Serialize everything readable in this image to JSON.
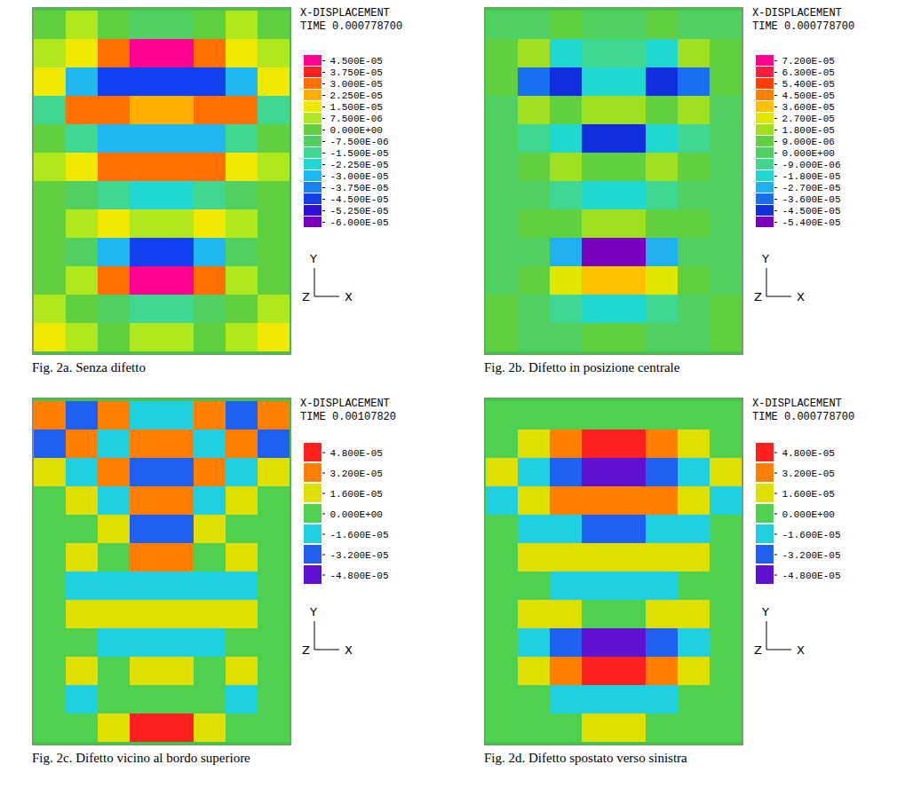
{
  "chart_data": [
    {
      "type": "heatmap",
      "title": "X-DISPLACEMENT",
      "subtitle": "TIME 0.000778700",
      "caption": "Fig. 2a. Senza difetto",
      "axis_labels": {
        "y": "Y",
        "z": "Z",
        "x": "X"
      },
      "tick_labels": false,
      "cells": [
        [
          0,
          7.5e-06,
          0,
          -7.5e-06,
          -7.5e-06,
          0,
          7.5e-06,
          0
        ],
        [
          7.5e-06,
          1.5e-05,
          3e-05,
          4.5e-05,
          4.5e-05,
          3e-05,
          1.5e-05,
          7.5e-06
        ],
        [
          1.5e-05,
          -3e-05,
          -4.5e-05,
          -4.5e-05,
          -4.5e-05,
          -4.5e-05,
          -3e-05,
          1.5e-05
        ],
        [
          -1.5e-05,
          3e-05,
          3e-05,
          2.25e-05,
          2.25e-05,
          3e-05,
          3e-05,
          -1.5e-05
        ],
        [
          0,
          -1.5e-05,
          -3e-05,
          -3e-05,
          -3e-05,
          -3e-05,
          -1.5e-05,
          0
        ],
        [
          7.5e-06,
          1.5e-05,
          3e-05,
          3e-05,
          3e-05,
          3e-05,
          1.5e-05,
          7.5e-06
        ],
        [
          0,
          -7.5e-06,
          -1.5e-05,
          -2.25e-05,
          -2.25e-05,
          -1.5e-05,
          -7.5e-06,
          0
        ],
        [
          0,
          7.5e-06,
          1.5e-05,
          7.5e-06,
          7.5e-06,
          1.5e-05,
          7.5e-06,
          0
        ],
        [
          0,
          -7.5e-06,
          -3e-05,
          -4.5e-05,
          -4.5e-05,
          -3e-05,
          -7.5e-06,
          0
        ],
        [
          0,
          7.5e-06,
          3e-05,
          4.5e-05,
          4.5e-05,
          3e-05,
          7.5e-06,
          0
        ],
        [
          7.5e-06,
          0,
          -7.5e-06,
          -1.5e-05,
          -1.5e-05,
          -7.5e-06,
          0,
          7.5e-06
        ],
        [
          1.5e-05,
          7.5e-06,
          0,
          7.5e-06,
          7.5e-06,
          0,
          7.5e-06,
          1.5e-05
        ]
      ],
      "colorbar": {
        "range": [
          -6e-05,
          4.5e-05
        ],
        "ticks": [
          {
            "value": -6e-05,
            "label": "-6.000E-05"
          },
          {
            "value": -5.25e-05,
            "label": "-5.250E-05"
          },
          {
            "value": -4.5e-05,
            "label": "-4.500E-05"
          },
          {
            "value": -3.75e-05,
            "label": "-3.750E-05"
          },
          {
            "value": -3e-05,
            "label": "-3.000E-05"
          },
          {
            "value": -2.25e-05,
            "label": "-2.250E-05"
          },
          {
            "value": -1.5e-05,
            "label": "-1.500E-05"
          },
          {
            "value": -7.5e-06,
            "label": "-7.500E-06"
          },
          {
            "value": 0,
            "label": "0.000E+00"
          },
          {
            "value": 7.5e-06,
            "label": "7.500E-06"
          },
          {
            "value": 1.5e-05,
            "label": "1.500E-05"
          },
          {
            "value": 2.25e-05,
            "label": "2.250E-05"
          },
          {
            "value": 3e-05,
            "label": "3.000E-05"
          },
          {
            "value": 3.75e-05,
            "label": "3.750E-05"
          },
          {
            "value": 4.5e-05,
            "label": "4.500E-05"
          }
        ]
      },
      "colors": [
        "#7a00c0",
        "#3010d8",
        "#1040f0",
        "#1880f0",
        "#20b8f0",
        "#20d8d0",
        "#40d890",
        "#50d060",
        "#60d040",
        "#b0e820",
        "#f0e800",
        "#ffb000",
        "#ff7000",
        "#ff2020",
        "#ff0090"
      ]
    },
    {
      "type": "heatmap",
      "title": "X-DISPLACEMENT",
      "subtitle": "TIME 0.000778700",
      "caption": "Fig. 2b. Difetto in posizione centrale",
      "axis_labels": {
        "y": "Y",
        "z": "Z",
        "x": "X"
      },
      "tick_labels": false,
      "cells": [
        [
          0,
          0,
          9e-06,
          0,
          0,
          9e-06,
          0,
          0
        ],
        [
          9e-06,
          1.8e-05,
          -1.8e-05,
          -9e-06,
          -9e-06,
          -1.8e-05,
          1.8e-05,
          9e-06
        ],
        [
          9e-06,
          -3.6e-05,
          -4.5e-05,
          -1.8e-05,
          -1.8e-05,
          -4.5e-05,
          -3.6e-05,
          9e-06
        ],
        [
          0,
          1.8e-05,
          9e-06,
          1.8e-05,
          1.8e-05,
          9e-06,
          1.8e-05,
          0
        ],
        [
          0,
          -9e-06,
          -1.8e-05,
          -4.5e-05,
          -4.5e-05,
          -1.8e-05,
          -9e-06,
          0
        ],
        [
          0,
          9e-06,
          1.8e-05,
          9e-06,
          9e-06,
          1.8e-05,
          9e-06,
          0
        ],
        [
          0,
          0,
          -9e-06,
          -1.8e-05,
          -1.8e-05,
          -9e-06,
          0,
          0
        ],
        [
          0,
          9e-06,
          9e-06,
          1.8e-05,
          1.8e-05,
          9e-06,
          9e-06,
          0
        ],
        [
          0,
          0,
          -2.7e-05,
          -5.4e-05,
          -5.4e-05,
          -2.7e-05,
          0,
          0
        ],
        [
          0,
          9e-06,
          2.7e-05,
          3.6e-05,
          3.6e-05,
          2.7e-05,
          9e-06,
          0
        ],
        [
          9e-06,
          0,
          -9e-06,
          -1.8e-05,
          -1.8e-05,
          -9e-06,
          0,
          9e-06
        ],
        [
          9e-06,
          0,
          0,
          9e-06,
          9e-06,
          0,
          0,
          9e-06
        ]
      ],
      "colorbar": {
        "range": [
          -5.4e-05,
          7.2e-05
        ],
        "ticks": [
          {
            "value": -5.4e-05,
            "label": "-5.400E-05"
          },
          {
            "value": -4.5e-05,
            "label": "-4.500E-05"
          },
          {
            "value": -3.6e-05,
            "label": "-3.600E-05"
          },
          {
            "value": -2.7e-05,
            "label": "-2.700E-05"
          },
          {
            "value": -1.8e-05,
            "label": "-1.800E-05"
          },
          {
            "value": -9e-06,
            "label": "-9.000E-06"
          },
          {
            "value": 0,
            "label": "0.000E+00"
          },
          {
            "value": 9e-06,
            "label": "9.000E-06"
          },
          {
            "value": 1.8e-05,
            "label": "1.800E-05"
          },
          {
            "value": 2.7e-05,
            "label": "2.700E-05"
          },
          {
            "value": 3.6e-05,
            "label": "3.600E-05"
          },
          {
            "value": 4.5e-05,
            "label": "4.500E-05"
          },
          {
            "value": 5.4e-05,
            "label": "5.400E-05"
          },
          {
            "value": 6.3e-05,
            "label": "6.300E-05"
          },
          {
            "value": 7.2e-05,
            "label": "7.200E-05"
          }
        ]
      },
      "colors": [
        "#7a00c0",
        "#1030e0",
        "#1870f0",
        "#20b0f0",
        "#20d8d0",
        "#40d890",
        "#50d060",
        "#60d040",
        "#a0e020",
        "#e0e800",
        "#ffc000",
        "#ff8000",
        "#ff4000",
        "#ff1a40",
        "#ff0090"
      ]
    },
    {
      "type": "heatmap",
      "title": "X-DISPLACEMENT",
      "subtitle": "TIME 0.00107820",
      "caption": "Fig. 2c. Difetto vicino al bordo superiore",
      "axis_labels": {
        "y": "Y",
        "z": "Z",
        "x": "X"
      },
      "tick_labels": false,
      "cells": [
        [
          3.2e-05,
          -3.2e-05,
          3.2e-05,
          -1.6e-05,
          -1.6e-05,
          3.2e-05,
          -3.2e-05,
          3.2e-05
        ],
        [
          -3.2e-05,
          3.2e-05,
          -1.6e-05,
          3.2e-05,
          3.2e-05,
          -1.6e-05,
          3.2e-05,
          -3.2e-05
        ],
        [
          1.6e-05,
          -1.6e-05,
          3.2e-05,
          -3.2e-05,
          -3.2e-05,
          3.2e-05,
          -1.6e-05,
          1.6e-05
        ],
        [
          0,
          1.6e-05,
          -1.6e-05,
          3.2e-05,
          3.2e-05,
          -1.6e-05,
          1.6e-05,
          0
        ],
        [
          0,
          0,
          1.6e-05,
          -3.2e-05,
          -3.2e-05,
          1.6e-05,
          0,
          0
        ],
        [
          0,
          1.6e-05,
          0,
          3.2e-05,
          3.2e-05,
          0,
          1.6e-05,
          0
        ],
        [
          0,
          -1.6e-05,
          -1.6e-05,
          -1.6e-05,
          -1.6e-05,
          -1.6e-05,
          -1.6e-05,
          0
        ],
        [
          0,
          1.6e-05,
          1.6e-05,
          1.6e-05,
          1.6e-05,
          1.6e-05,
          1.6e-05,
          0
        ],
        [
          0,
          0,
          -1.6e-05,
          -1.6e-05,
          -1.6e-05,
          -1.6e-05,
          0,
          0
        ],
        [
          0,
          1.6e-05,
          0,
          1.6e-05,
          1.6e-05,
          0,
          1.6e-05,
          0
        ],
        [
          0,
          -1.6e-05,
          0,
          0,
          0,
          0,
          -1.6e-05,
          0
        ],
        [
          0,
          0,
          1.6e-05,
          4.8e-05,
          4.8e-05,
          1.6e-05,
          0,
          0
        ]
      ],
      "colorbar": {
        "range": [
          -4.8e-05,
          4.8e-05
        ],
        "ticks": [
          {
            "value": -4.8e-05,
            "label": "-4.800E-05"
          },
          {
            "value": -3.2e-05,
            "label": "-3.200E-05"
          },
          {
            "value": -1.6e-05,
            "label": "-1.600E-05"
          },
          {
            "value": 0,
            "label": "0.000E+00"
          },
          {
            "value": 1.6e-05,
            "label": "1.600E-05"
          },
          {
            "value": 3.2e-05,
            "label": "3.200E-05"
          },
          {
            "value": 4.8e-05,
            "label": "4.800E-05"
          }
        ]
      },
      "colors": [
        "#6010d0",
        "#2060f0",
        "#20d0e0",
        "#50d050",
        "#e0e000",
        "#ff8000",
        "#ff2020"
      ]
    },
    {
      "type": "heatmap",
      "title": "X-DISPLACEMENT",
      "subtitle": "TIME 0.000778700",
      "caption": "Fig. 2d. Difetto spostato verso sinistra",
      "axis_labels": {
        "y": "Y",
        "z": "Z",
        "x": "X"
      },
      "tick_labels": false,
      "cells": [
        [
          0,
          0,
          0,
          0,
          0,
          0,
          0,
          0
        ],
        [
          0,
          1.6e-05,
          3.2e-05,
          4.8e-05,
          4.8e-05,
          3.2e-05,
          1.6e-05,
          0
        ],
        [
          1.6e-05,
          -1.6e-05,
          -3.2e-05,
          -4.8e-05,
          -4.8e-05,
          -3.2e-05,
          -1.6e-05,
          1.6e-05
        ],
        [
          -1.6e-05,
          1.6e-05,
          3.2e-05,
          3.2e-05,
          3.2e-05,
          3.2e-05,
          1.6e-05,
          -1.6e-05
        ],
        [
          0,
          -1.6e-05,
          -1.6e-05,
          -3.2e-05,
          -3.2e-05,
          -1.6e-05,
          -1.6e-05,
          0
        ],
        [
          0,
          1.6e-05,
          1.6e-05,
          1.6e-05,
          1.6e-05,
          1.6e-05,
          1.6e-05,
          0
        ],
        [
          0,
          0,
          -1.6e-05,
          -1.6e-05,
          -1.6e-05,
          -1.6e-05,
          0,
          0
        ],
        [
          0,
          1.6e-05,
          1.6e-05,
          0,
          0,
          1.6e-05,
          1.6e-05,
          0
        ],
        [
          0,
          -1.6e-05,
          -3.2e-05,
          -4.8e-05,
          -4.8e-05,
          -3.2e-05,
          -1.6e-05,
          0
        ],
        [
          0,
          1.6e-05,
          3.2e-05,
          4.8e-05,
          4.8e-05,
          3.2e-05,
          1.6e-05,
          0
        ],
        [
          0,
          0,
          -1.6e-05,
          -1.6e-05,
          -1.6e-05,
          -1.6e-05,
          0,
          0
        ],
        [
          0,
          0,
          0,
          1.6e-05,
          1.6e-05,
          0,
          0,
          0
        ]
      ],
      "colorbar": {
        "range": [
          -4.8e-05,
          4.8e-05
        ],
        "ticks": [
          {
            "value": -4.8e-05,
            "label": "-4.800E-05"
          },
          {
            "value": -3.2e-05,
            "label": "-3.200E-05"
          },
          {
            "value": -1.6e-05,
            "label": "-1.600E-05"
          },
          {
            "value": 0,
            "label": "0.000E+00"
          },
          {
            "value": 1.6e-05,
            "label": "1.600E-05"
          },
          {
            "value": 3.2e-05,
            "label": "3.200E-05"
          },
          {
            "value": 4.8e-05,
            "label": "4.800E-05"
          }
        ]
      },
      "colors": [
        "#6010d0",
        "#2060f0",
        "#20d0e0",
        "#50d050",
        "#e0e000",
        "#ff8000",
        "#ff2020"
      ]
    }
  ]
}
